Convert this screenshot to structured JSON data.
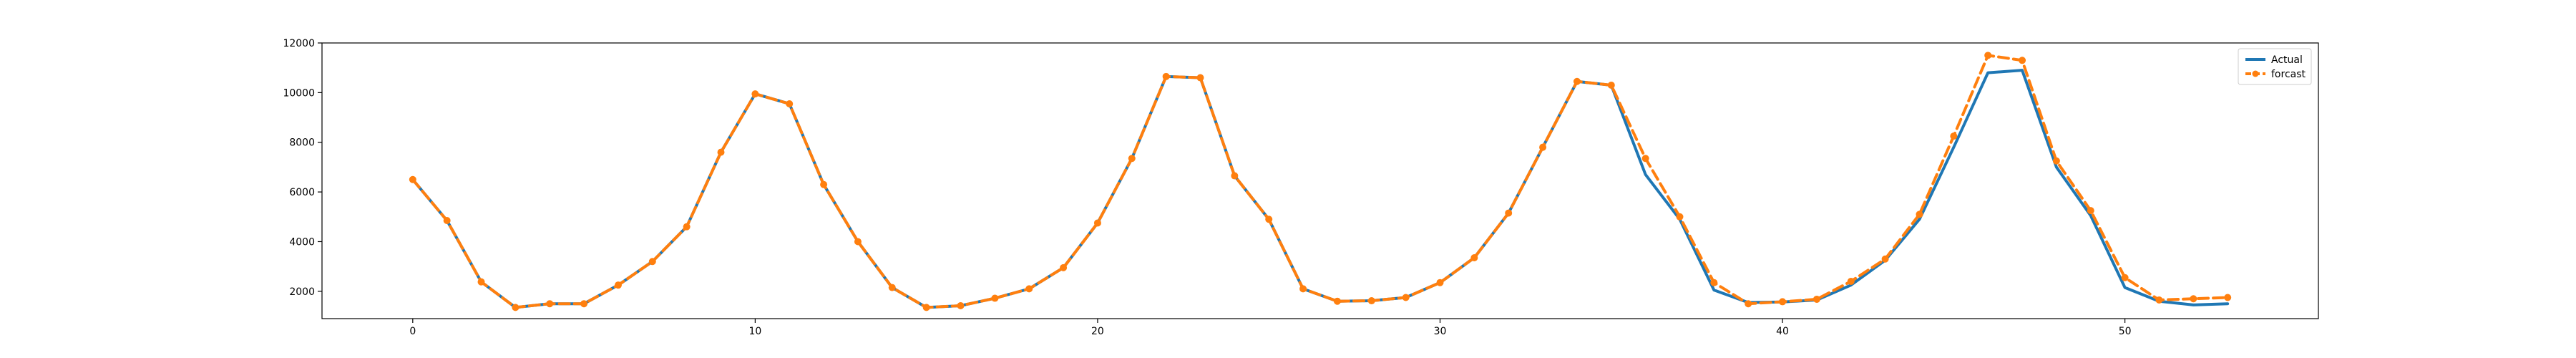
{
  "chart_data": {
    "type": "line",
    "title": "",
    "xlabel": "",
    "ylabel": "",
    "xlim": [
      -2.65,
      55.65
    ],
    "ylim": [
      900,
      12000
    ],
    "xticks": [
      0,
      10,
      20,
      30,
      40,
      50
    ],
    "yticks": [
      2000,
      4000,
      6000,
      8000,
      10000,
      12000
    ],
    "grid": false,
    "legend": "top-right",
    "x": [
      0,
      1,
      2,
      3,
      4,
      5,
      6,
      7,
      8,
      9,
      10,
      11,
      12,
      13,
      14,
      15,
      16,
      17,
      18,
      19,
      20,
      21,
      22,
      23,
      24,
      25,
      26,
      27,
      28,
      29,
      30,
      31,
      32,
      33,
      34,
      35,
      36,
      37,
      38,
      39,
      40,
      41,
      42,
      43,
      44,
      45,
      46,
      47,
      48,
      49,
      50,
      51,
      52,
      53
    ],
    "series": [
      {
        "name": "Actual",
        "color": "#1f77b4",
        "style": "solid",
        "values": [
          6500,
          4850,
          2380,
          1350,
          1500,
          1500,
          2250,
          3200,
          4600,
          7600,
          9950,
          9550,
          6300,
          4000,
          2150,
          1350,
          1420,
          1720,
          2100,
          2950,
          4750,
          7350,
          10650,
          10600,
          6650,
          4900,
          2100,
          1600,
          1620,
          1750,
          2350,
          3350,
          5150,
          7800,
          10450,
          10300,
          6700,
          4900,
          2050,
          1550,
          1570,
          1650,
          2250,
          3250,
          4900,
          7800,
          10800,
          10900,
          7000,
          5050,
          2150,
          1600,
          1450,
          1500
        ]
      },
      {
        "name": "forcast",
        "color": "#ff7f0e",
        "style": "dashed",
        "values": [
          6500,
          4850,
          2380,
          1350,
          1500,
          1500,
          2250,
          3200,
          4600,
          7600,
          9950,
          9550,
          6300,
          4000,
          2150,
          1350,
          1420,
          1720,
          2100,
          2950,
          4750,
          7350,
          10650,
          10600,
          6650,
          4900,
          2100,
          1600,
          1620,
          1750,
          2350,
          3350,
          5150,
          7800,
          10450,
          10300,
          7350,
          5000,
          2350,
          1500,
          1580,
          1680,
          2400,
          3300,
          5100,
          8250,
          11500,
          11300,
          7250,
          5250,
          2550,
          1650,
          1700,
          1750
        ]
      }
    ]
  }
}
